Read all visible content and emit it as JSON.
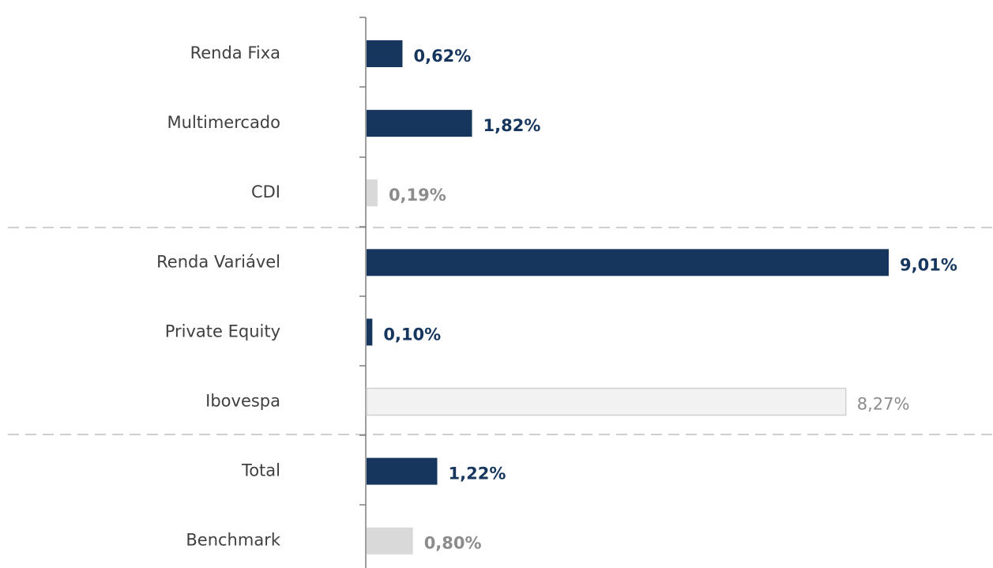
{
  "chart_data": {
    "type": "hbar",
    "categories": [
      "Renda Fixa",
      "Multimercado",
      "CDI",
      "Renda Variável",
      "Private Equity",
      "Ibovespa",
      "Total",
      "Benchmark"
    ],
    "values": [
      0.62,
      1.82,
      0.19,
      9.01,
      0.1,
      8.27,
      1.22,
      0.8
    ],
    "value_labels": [
      "0,62%",
      "1,82%",
      "0,19%",
      "9,01%",
      "0,10%",
      "8,27%",
      "1,22%",
      "0,80%"
    ],
    "colors": [
      "#17365d",
      "#17365d",
      "#d9d9d9",
      "#17365d",
      "#17365d",
      "#f2f2f2",
      "#17365d",
      "#d9d9d9"
    ]
  }
}
